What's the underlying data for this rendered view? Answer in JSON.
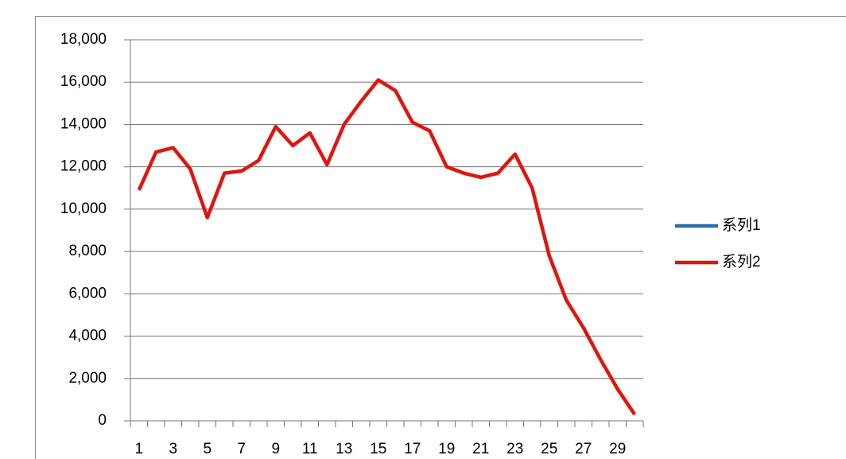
{
  "chart_data": {
    "type": "line",
    "categories": [
      1,
      null,
      3,
      null,
      5,
      null,
      7,
      null,
      9,
      null,
      11,
      null,
      13,
      null,
      15,
      null,
      17,
      null,
      19,
      null,
      21,
      null,
      23,
      null,
      25,
      null,
      27,
      null,
      29,
      null
    ],
    "series": [
      {
        "name": "系列1",
        "color": "#2a6ea6",
        "values": [
          null,
          null,
          null,
          null,
          null,
          null,
          null,
          null,
          null,
          null,
          null,
          null,
          null,
          null,
          null,
          null,
          null,
          null,
          null,
          null,
          null,
          null,
          null,
          null,
          null,
          null,
          null,
          null,
          null,
          null
        ]
      },
      {
        "name": "系列2",
        "color": "#e0150d",
        "values": [
          10900,
          12700,
          12900,
          11900,
          9600,
          11700,
          11800,
          12300,
          13900,
          13000,
          13600,
          12100,
          14000,
          15100,
          16100,
          15600,
          14100,
          13700,
          12000,
          11700,
          11500,
          11700,
          12600,
          11000,
          7800,
          5700,
          4400,
          2900,
          1500,
          300
        ]
      }
    ],
    "ylim": [
      0,
      18000
    ],
    "yticks": [
      0,
      {
        "value": 2000,
        "label": "2,000"
      },
      {
        "value": 4000,
        "label": "4,000"
      },
      {
        "value": 6000,
        "label": "6,000"
      },
      {
        "value": 8000,
        "label": "8,000"
      },
      {
        "value": 10000,
        "label": "10,000"
      },
      {
        "value": 12000,
        "label": "12,000"
      },
      {
        "value": 14000,
        "label": "14,000"
      },
      {
        "value": 16000,
        "label": "16,000"
      },
      {
        "value": 18000,
        "label": "18,000"
      }
    ],
    "grid": true,
    "legend": "right"
  }
}
